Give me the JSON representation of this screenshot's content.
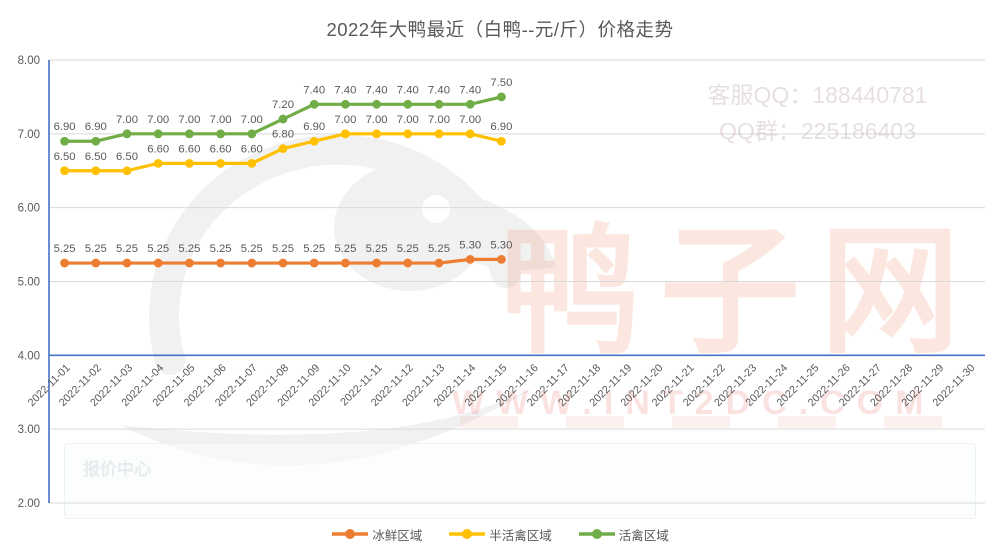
{
  "title": "2022年大鸭最近（白鸭--元/斤）价格走势",
  "watermarks": {
    "qq_line1": "客服QQ：188440781",
    "qq_line2": "QQ群：225186403",
    "site_name": "鸭子网",
    "site_url": "WWW.INT2DC.COM",
    "page_label": "报价中心"
  },
  "chart_data": {
    "type": "line",
    "title": "2022年大鸭最近（白鸭--元/斤）价格走势",
    "x": [
      "2022-11-01",
      "2022-11-02",
      "2022-11-03",
      "2022-11-04",
      "2022-11-05",
      "2022-11-06",
      "2022-11-07",
      "2022-11-08",
      "2022-11-09",
      "2022-11-10",
      "2022-11-11",
      "2022-11-12",
      "2022-11-13",
      "2022-11-14",
      "2022-11-15",
      "2022-11-16",
      "2022-11-17",
      "2022-11-18",
      "2022-11-19",
      "2022-11-20",
      "2022-11-21",
      "2022-11-22",
      "2022-11-23",
      "2022-11-24",
      "2022-11-25",
      "2022-11-26",
      "2022-11-27",
      "2022-11-28",
      "2022-11-29",
      "2022-11-30"
    ],
    "series": [
      {
        "name": "冰鲜区域",
        "color": "#ED7D31",
        "values": [
          5.25,
          5.25,
          5.25,
          5.25,
          5.25,
          5.25,
          5.25,
          5.25,
          5.25,
          5.25,
          5.25,
          5.25,
          5.25,
          5.3,
          5.3
        ]
      },
      {
        "name": "半活禽区域",
        "color": "#FFC000",
        "values": [
          6.5,
          6.5,
          6.5,
          6.6,
          6.6,
          6.6,
          6.6,
          6.8,
          6.9,
          7.0,
          7.0,
          7.0,
          7.0,
          7.0,
          6.9
        ]
      },
      {
        "name": "活禽区域",
        "color": "#70AD47",
        "values": [
          6.9,
          6.9,
          7.0,
          7.0,
          7.0,
          7.0,
          7.0,
          7.2,
          7.4,
          7.4,
          7.4,
          7.4,
          7.4,
          7.4,
          7.5
        ]
      }
    ],
    "ylabel": "",
    "xlabel": "",
    "ylim": [
      2.0,
      8.0
    ],
    "ytick_step": 1,
    "x_axis_cross": 4.0,
    "grid": true,
    "legend_position": "bottom",
    "colors": {
      "axis": "#4472C4",
      "grid": "#D9D9D9",
      "text": "#595959"
    }
  }
}
